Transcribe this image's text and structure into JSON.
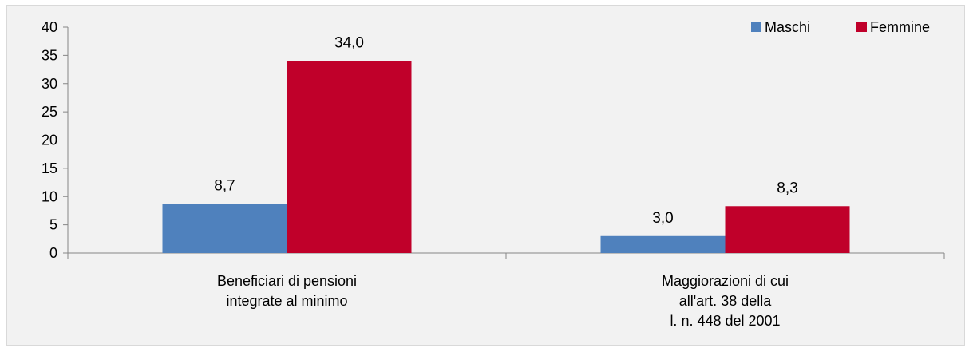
{
  "chart_data": {
    "type": "bar",
    "categories": [
      [
        "Beneficiari di pensioni",
        "integrate al minimo"
      ],
      [
        "Maggiorazioni di cui",
        "all'art. 38 della",
        "l. n. 448 del 2001"
      ]
    ],
    "series": [
      {
        "name": "Maschi",
        "values": [
          8.7,
          3.0
        ],
        "labels": [
          "8,7",
          "3,0"
        ],
        "color": "#4f81bd"
      },
      {
        "name": "Femmine",
        "values": [
          34.0,
          8.3
        ],
        "labels": [
          "34,0",
          "8,3"
        ],
        "color": "#c0002a"
      }
    ],
    "ylim": [
      0,
      40
    ],
    "yticks": [
      0,
      5,
      10,
      15,
      20,
      25,
      30,
      35,
      40
    ],
    "legend_position": "top-right",
    "grid": false
  }
}
